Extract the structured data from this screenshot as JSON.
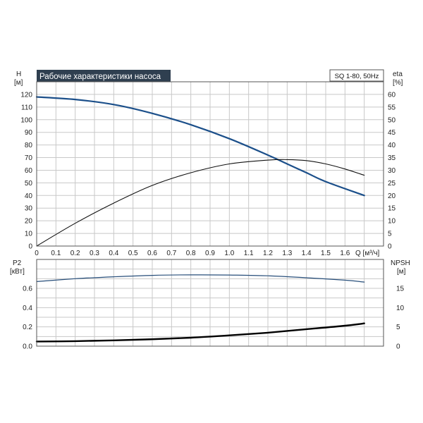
{
  "title": "Рабочие характеристики насоса",
  "model": "SQ 1-80, 50Hz",
  "colors": {
    "title_bg": "#2f3f50",
    "grid": "#c8c8c8",
    "frame": "#555555",
    "head_curve": "#1b4f8a",
    "eff_curve": "#111111",
    "p2_curve": "#274e7a",
    "npsh_curve": "#000000"
  },
  "axes": {
    "h_label": "H",
    "h_unit": "[м]",
    "eta_label": "eta",
    "eta_unit": "[%]",
    "q_label": "Q [м³/ч]",
    "p2_label": "P2",
    "p2_unit": "[кВт]",
    "npsh_label": "NPSH",
    "npsh_unit": "[м]"
  },
  "chart_data": [
    {
      "type": "line",
      "title": "Рабочие характеристики насоса",
      "xlabel": "Q [м³/ч]",
      "ylabel": "H [м]",
      "y2label": "eta [%]",
      "xlim": [
        0,
        1.8
      ],
      "ylim": [
        0,
        130
      ],
      "y2lim": [
        0,
        65
      ],
      "grid": true,
      "x_ticks": [
        "0",
        "0.1",
        "0.2",
        "0.3",
        "0.4",
        "0.5",
        "0.6",
        "0.7",
        "0.8",
        "0.9",
        "1.0",
        "1.1",
        "1.2",
        "1.3",
        "1.4",
        "1.5",
        "1.6"
      ],
      "y_ticks": [
        "0",
        "10",
        "20",
        "30",
        "40",
        "50",
        "60",
        "70",
        "80",
        "90",
        "100",
        "110",
        "120"
      ],
      "y2_ticks": [
        "0",
        "5",
        "10",
        "15",
        "20",
        "25",
        "30",
        "35",
        "40",
        "45",
        "50",
        "55",
        "60"
      ],
      "series": [
        {
          "axis": "left",
          "x": [
            0,
            0.2,
            0.4,
            0.6,
            0.8,
            1.0,
            1.2,
            1.3,
            1.4,
            1.5,
            1.7
          ],
          "values": [
            118,
            116,
            112,
            105,
            96,
            85,
            72,
            65,
            58,
            51,
            40
          ]
        },
        {
          "axis": "right",
          "x": [
            0,
            0.2,
            0.4,
            0.6,
            0.8,
            1.0,
            1.2,
            1.3,
            1.4,
            1.5,
            1.6,
            1.7
          ],
          "values": [
            0,
            9,
            17,
            24,
            29,
            32.5,
            34,
            34.2,
            33.8,
            32.5,
            30.5,
            28
          ]
        }
      ]
    },
    {
      "type": "line",
      "xlabel": "Q [м³/ч]",
      "ylabel": "P2 [кВт]",
      "y2label": "NPSH [м]",
      "xlim": [
        0,
        1.8
      ],
      "ylim": [
        0,
        0.9
      ],
      "y2lim": [
        0,
        22.5
      ],
      "grid": true,
      "y_ticks": [
        "0.0",
        "0.2",
        "0.4",
        "0.6"
      ],
      "y2_ticks": [
        "0",
        "5",
        "10",
        "15"
      ],
      "series": [
        {
          "axis": "left",
          "x": [
            0,
            0.2,
            0.4,
            0.6,
            0.8,
            1.0,
            1.2,
            1.4,
            1.6,
            1.7
          ],
          "values": [
            0.67,
            0.7,
            0.72,
            0.735,
            0.74,
            0.738,
            0.73,
            0.71,
            0.685,
            0.665
          ]
        },
        {
          "axis": "right",
          "x": [
            0,
            0.2,
            0.4,
            0.6,
            0.8,
            1.0,
            1.2,
            1.4,
            1.6,
            1.7
          ],
          "values": [
            1.2,
            1.3,
            1.5,
            1.8,
            2.2,
            2.8,
            3.5,
            4.4,
            5.3,
            5.9
          ]
        }
      ]
    }
  ]
}
